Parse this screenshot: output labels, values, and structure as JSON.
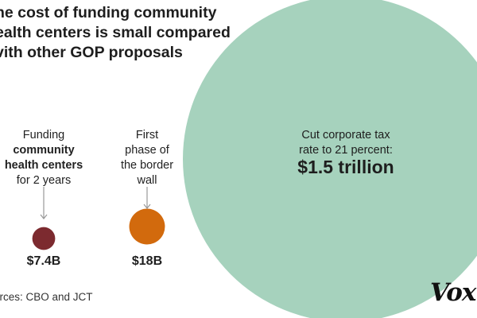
{
  "title_lines": [
    "he cost of funding community",
    "ealth centers is small compared",
    "vith other GOP proposals"
  ],
  "source": "urces: CBO and JCT",
  "logo": "Vox",
  "colors": {
    "community_health_centers": "#7c2a2f",
    "border_wall": "#d26a0d",
    "corporate_tax": "#a6d2bd",
    "arrow": "#999999"
  },
  "chart_data": {
    "type": "bubble",
    "unit": "billion USD",
    "items": [
      {
        "caption_lines": [
          {
            "text": "Funding",
            "bold": false
          },
          {
            "text": "community",
            "bold": true
          },
          {
            "text": "health centers",
            "bold": true
          },
          {
            "text": "for 2 years",
            "bold": false
          }
        ],
        "value": 7.4,
        "value_label": "$7.4B",
        "color": "#7c2a2f"
      },
      {
        "caption_lines": [
          {
            "text": "First",
            "bold": false
          },
          {
            "text": "phase of",
            "bold": false
          },
          {
            "text": "the border",
            "bold": false
          },
          {
            "text": "wall",
            "bold": false
          }
        ],
        "value": 18,
        "value_label": "$18B",
        "color": "#d26a0d"
      },
      {
        "caption_lines": [
          {
            "text": "Cut corporate tax",
            "bold": false
          },
          {
            "text": "rate to 21 percent:",
            "bold": false
          }
        ],
        "value": 1500,
        "value_label": "$1.5 trillion",
        "color": "#a6d2bd"
      }
    ]
  }
}
